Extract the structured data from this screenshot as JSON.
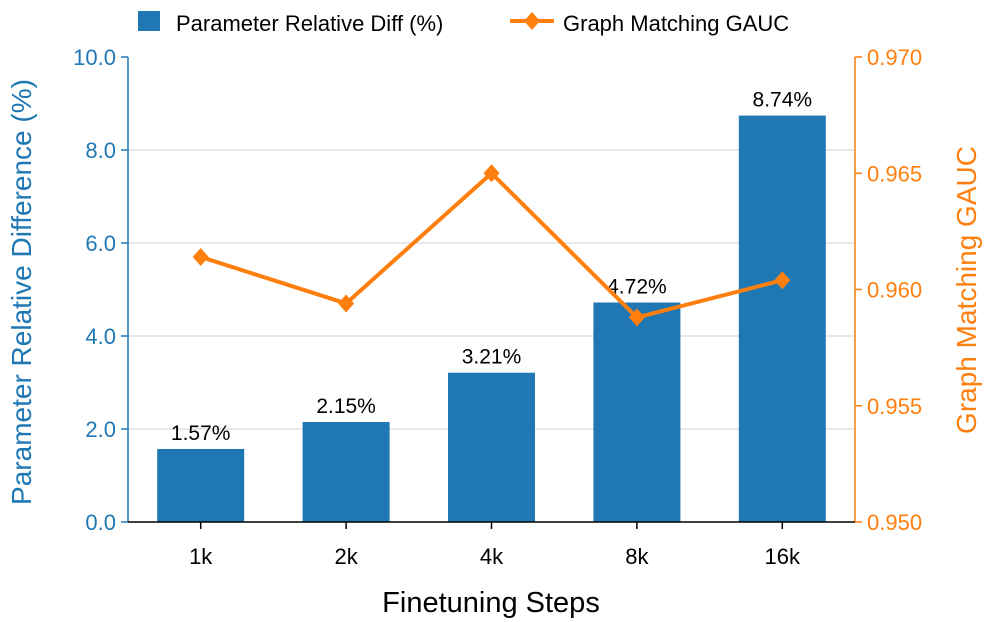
{
  "chart_data": {
    "type": "bar",
    "xlabel": "Finetuning Steps",
    "ylabel": "Parameter Relative Difference (%)",
    "y2label": "Graph Matching GAUC",
    "categories": [
      "1k",
      "2k",
      "4k",
      "8k",
      "16k"
    ],
    "ylim": [
      0,
      10
    ],
    "y2lim": [
      0.95,
      0.97
    ],
    "yticks": [
      "0.0",
      "2.0",
      "4.0",
      "6.0",
      "8.0",
      "10.0"
    ],
    "y2ticks": [
      "0.950",
      "0.955",
      "0.960",
      "0.965",
      "0.970"
    ],
    "grid": true,
    "legend_position": "top",
    "series": [
      {
        "name": "Parameter Relative Diff (%)",
        "type": "bar",
        "axis": "left",
        "color": "#1f77b4",
        "values": [
          1.57,
          2.15,
          3.21,
          4.72,
          8.74
        ],
        "labels": [
          "1.57%",
          "2.15%",
          "3.21%",
          "4.72%",
          "8.74%"
        ]
      },
      {
        "name": "Graph Matching GAUC",
        "type": "line",
        "axis": "right",
        "color": "#ff7f0e",
        "marker": "diamond",
        "values": [
          0.9614,
          0.9594,
          0.965,
          0.9588,
          0.9604
        ]
      }
    ]
  }
}
